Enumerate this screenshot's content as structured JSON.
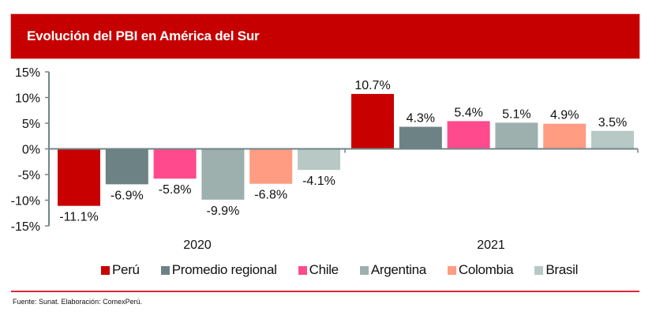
{
  "header": {
    "title": "Evolución del PBI en América del Sur"
  },
  "chart_data": {
    "type": "bar",
    "title": "Evolución del PBI en América del Sur",
    "xlabel": "",
    "ylabel": "",
    "categories": [
      "2020",
      "2021"
    ],
    "ylim": [
      -15,
      15
    ],
    "yticks": [
      15,
      10,
      5,
      0,
      -5,
      -10,
      -15
    ],
    "ytick_labels": [
      "15%",
      "10%",
      "5%",
      "0%",
      "-5%",
      "-10%",
      "-15%"
    ],
    "grid": false,
    "legend_position": "bottom",
    "series": [
      {
        "name": "Perú",
        "color": "#c80000",
        "values": [
          -11.1,
          10.7
        ],
        "labels": [
          "-11.1%",
          "10.7%"
        ]
      },
      {
        "name": "Promedio regional",
        "color": "#6d8284",
        "values": [
          -6.9,
          4.3
        ],
        "labels": [
          "-6.9%",
          "4.3%"
        ]
      },
      {
        "name": "Chile",
        "color": "#ff4a8e",
        "values": [
          -5.8,
          5.4
        ],
        "labels": [
          "-5.8%",
          "5.4%"
        ]
      },
      {
        "name": "Argentina",
        "color": "#9db0ad",
        "values": [
          -9.9,
          5.1
        ],
        "labels": [
          "-9.9%",
          "5.1%"
        ]
      },
      {
        "name": "Colombia",
        "color": "#ff9c82",
        "values": [
          -6.8,
          4.9
        ],
        "labels": [
          "-6.8%",
          "4.9%"
        ]
      },
      {
        "name": "Brasil",
        "color": "#b7c8c5",
        "values": [
          -4.1,
          3.5
        ],
        "labels": [
          "-4.1%",
          "3.5%"
        ]
      }
    ]
  },
  "footer": {
    "source": "Fuente: Sunat. Elaboración: ComexPerú."
  },
  "colors": {
    "header_bg": "#c60000",
    "axis": "#6f8688",
    "footer_rule": "#d9263a"
  }
}
